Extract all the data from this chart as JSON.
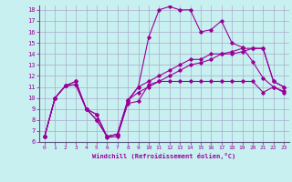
{
  "xlabel": "Windchill (Refroidissement éolien,°C)",
  "bg_color": "#c8f0f0",
  "grid_color": "#aaaacc",
  "line_color": "#990099",
  "xlim": [
    -0.5,
    23.5
  ],
  "ylim": [
    6,
    18.4
  ],
  "xticks": [
    0,
    1,
    2,
    3,
    4,
    5,
    6,
    7,
    8,
    9,
    10,
    11,
    12,
    13,
    14,
    15,
    16,
    17,
    18,
    19,
    20,
    21,
    22,
    23
  ],
  "yticks": [
    6,
    7,
    8,
    9,
    10,
    11,
    12,
    13,
    14,
    15,
    16,
    17,
    18
  ],
  "s1_y": [
    6.5,
    10.0,
    11.1,
    11.2,
    9.0,
    8.5,
    6.4,
    6.5,
    9.5,
    9.7,
    11.2,
    11.5,
    11.5,
    11.5,
    11.5,
    11.5,
    11.5,
    11.5,
    11.5,
    11.5,
    11.5,
    10.5,
    11.0,
    10.5
  ],
  "s2_y": [
    6.5,
    10.0,
    11.1,
    11.2,
    9.0,
    8.5,
    6.5,
    6.7,
    9.7,
    11.0,
    15.5,
    18.0,
    18.3,
    18.0,
    18.0,
    16.0,
    16.2,
    17.0,
    15.0,
    14.6,
    13.3,
    11.8,
    11.0,
    10.6
  ],
  "s3_y": [
    6.5,
    10.0,
    11.1,
    11.5,
    9.0,
    8.0,
    6.5,
    6.7,
    9.8,
    11.0,
    11.5,
    12.0,
    12.5,
    13.0,
    13.5,
    13.5,
    14.0,
    14.0,
    14.2,
    14.5,
    14.5,
    14.5,
    11.5,
    11.0
  ],
  "s4_y": [
    6.5,
    10.0,
    11.1,
    11.5,
    9.0,
    8.0,
    6.5,
    6.7,
    9.8,
    10.5,
    11.0,
    11.5,
    12.0,
    12.5,
    13.0,
    13.2,
    13.5,
    14.0,
    14.0,
    14.2,
    14.5,
    14.5,
    11.5,
    11.0
  ]
}
